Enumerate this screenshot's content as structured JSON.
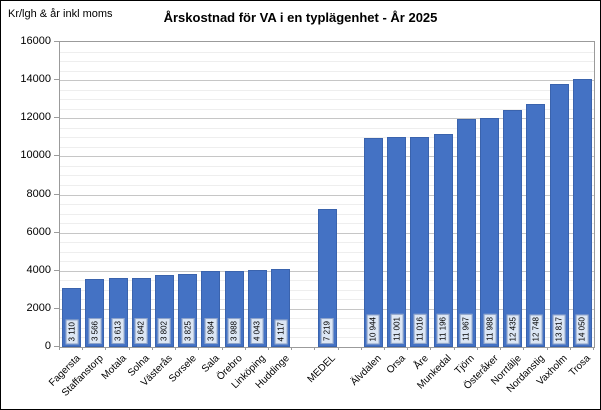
{
  "chart_data": {
    "type": "bar",
    "title": "Årskostnad för VA i en typlägenhet - År 2025",
    "ylabel": "Kr/lgh & år inkl moms",
    "xlabel": "",
    "ylim": [
      0,
      16000
    ],
    "y_major_step": 2000,
    "y_minor_step": 500,
    "grid": true,
    "legend": false,
    "bar_color": "#4472C4",
    "bar_border_color": "#3a63ad",
    "value_label_bg": "#dce6f4",
    "value_label_border": "#8ea3c8",
    "categories": [
      "Fagersta",
      "Staffanstorp",
      "Motala",
      "Solna",
      "Västerås",
      "Sorsele",
      "Sala",
      "Örebro",
      "Linköping",
      "Huddinge",
      "MEDEL",
      "Älvdalen",
      "Orsa",
      "Åre",
      "Munkedal",
      "Tjörn",
      "Österåker",
      "Norrtälje",
      "Nordanstig",
      "Vaxholm",
      "Trosa"
    ],
    "values": [
      3110,
      3566,
      3613,
      3642,
      3802,
      3825,
      3964,
      3988,
      4043,
      4117,
      7219,
      10944,
      11001,
      11016,
      11196,
      11967,
      11988,
      12435,
      12748,
      13817,
      14050
    ],
    "value_labels": [
      "3 110",
      "3 566",
      "3 613",
      "3 642",
      "3 802",
      "3 825",
      "3 964",
      "3 988",
      "4 043",
      "4 117",
      "7 219",
      "10 944",
      "11 001",
      "11 016",
      "11 196",
      "11 967",
      "11 988",
      "12 435",
      "12 748",
      "13 817",
      "14 050"
    ],
    "gap_slots": [
      10,
      12
    ]
  }
}
